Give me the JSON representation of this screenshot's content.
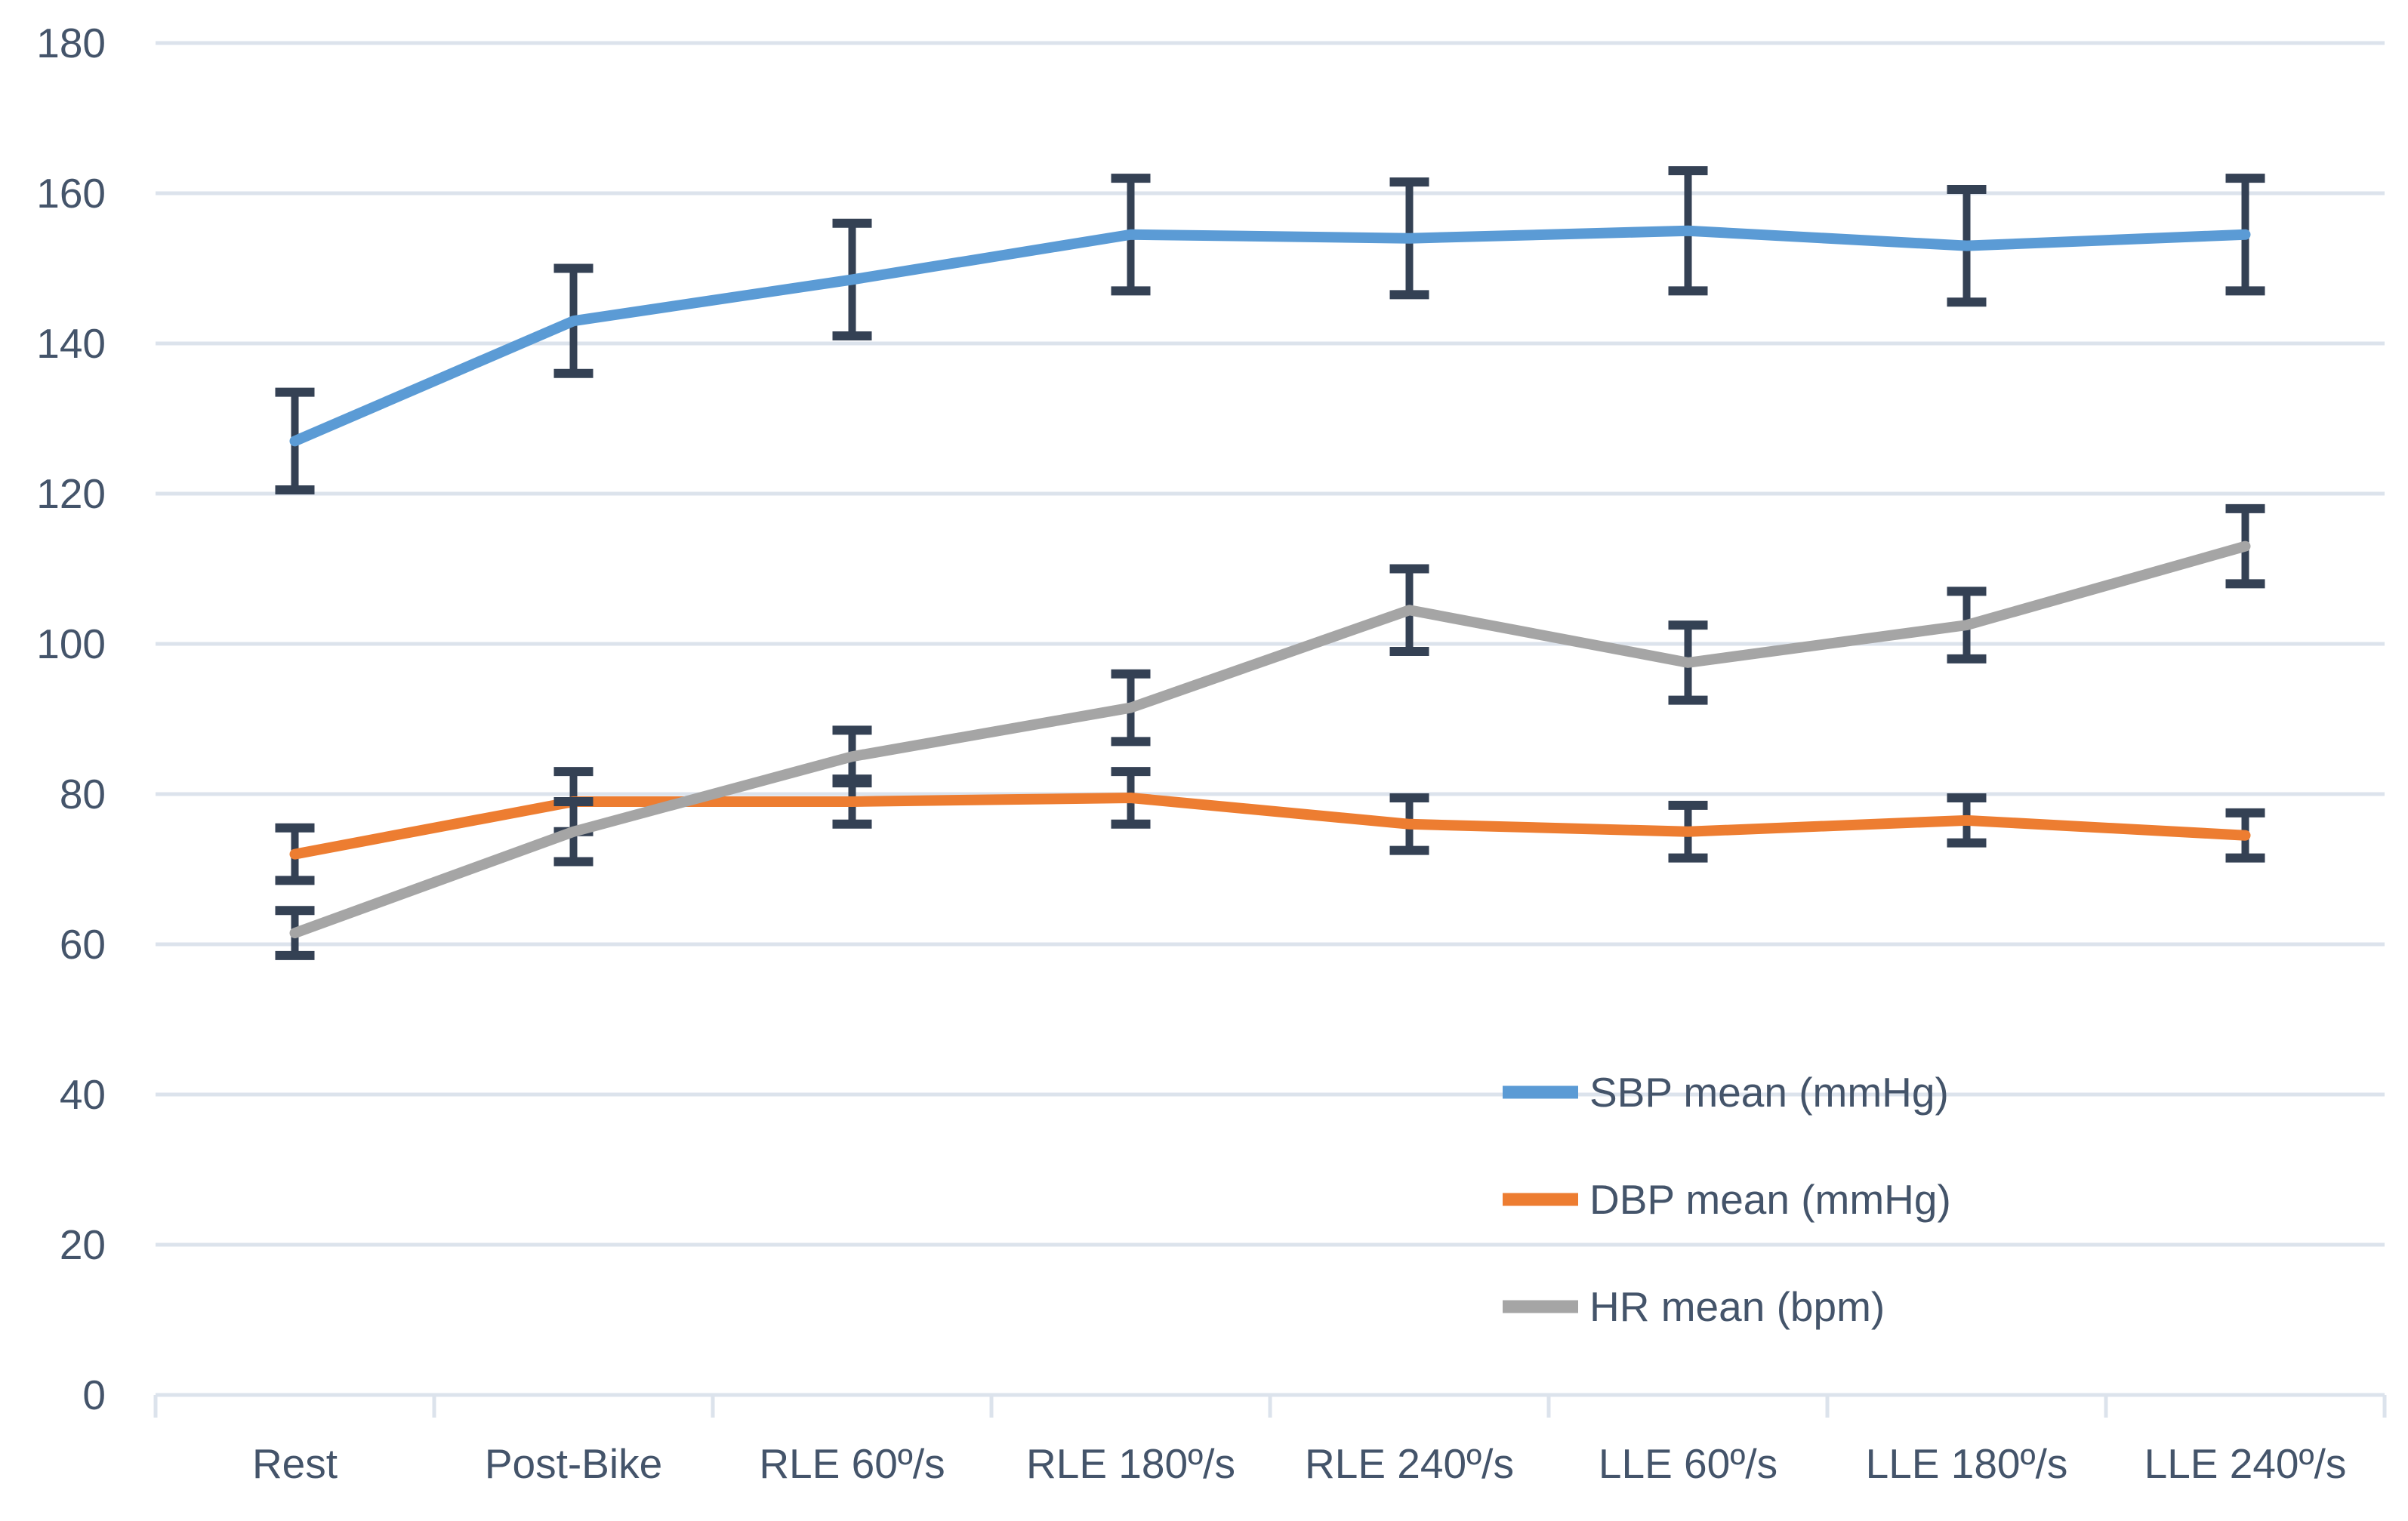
{
  "chart_data": {
    "type": "line",
    "categories": [
      "Rest",
      "Post-Bike",
      "RLE 60º/s",
      "RLE 180º/s",
      "RLE 240º/s",
      "LLE 60º/s",
      "LLE 180º/s",
      "LLE 240º/s"
    ],
    "series": [
      {
        "name": "SBP mean (mmHg)",
        "color": "#5B9BD5",
        "values": [
          127,
          143,
          148.5,
          154.5,
          154,
          155,
          153,
          154.5
        ],
        "error": [
          6.5,
          7,
          7.5,
          7.5,
          7.5,
          8,
          7.5,
          7.5
        ]
      },
      {
        "name": "DBP mean (mmHg)",
        "color": "#ED7D31",
        "values": [
          72,
          79,
          79,
          79.5,
          76,
          75,
          76.5,
          74.5
        ],
        "error": [
          3.5,
          4,
          3,
          3.5,
          3.5,
          3.5,
          3,
          3
        ]
      },
      {
        "name": "HR mean (bpm)",
        "color": "#A5A5A5",
        "values": [
          61.5,
          75,
          85,
          91.5,
          104.5,
          97.5,
          102.5,
          113
        ],
        "error": [
          3,
          4,
          3.5,
          4.5,
          5.5,
          5,
          4.5,
          5
        ]
      }
    ],
    "title": "",
    "xlabel": "",
    "ylabel": "",
    "ylim": [
      0,
      180
    ],
    "ytick_step": 20,
    "ytick_labels": [
      "0",
      "20",
      "40",
      "60",
      "80",
      "100",
      "120",
      "140",
      "160",
      "180"
    ],
    "grid": true,
    "legend_position": "right-lower",
    "colors": {
      "gridline": "#DCE3EC",
      "axis_line": "#DCE3EC",
      "error_bar": "#344154",
      "tick_text": "#44546A",
      "background": "#FFFFFF"
    }
  }
}
